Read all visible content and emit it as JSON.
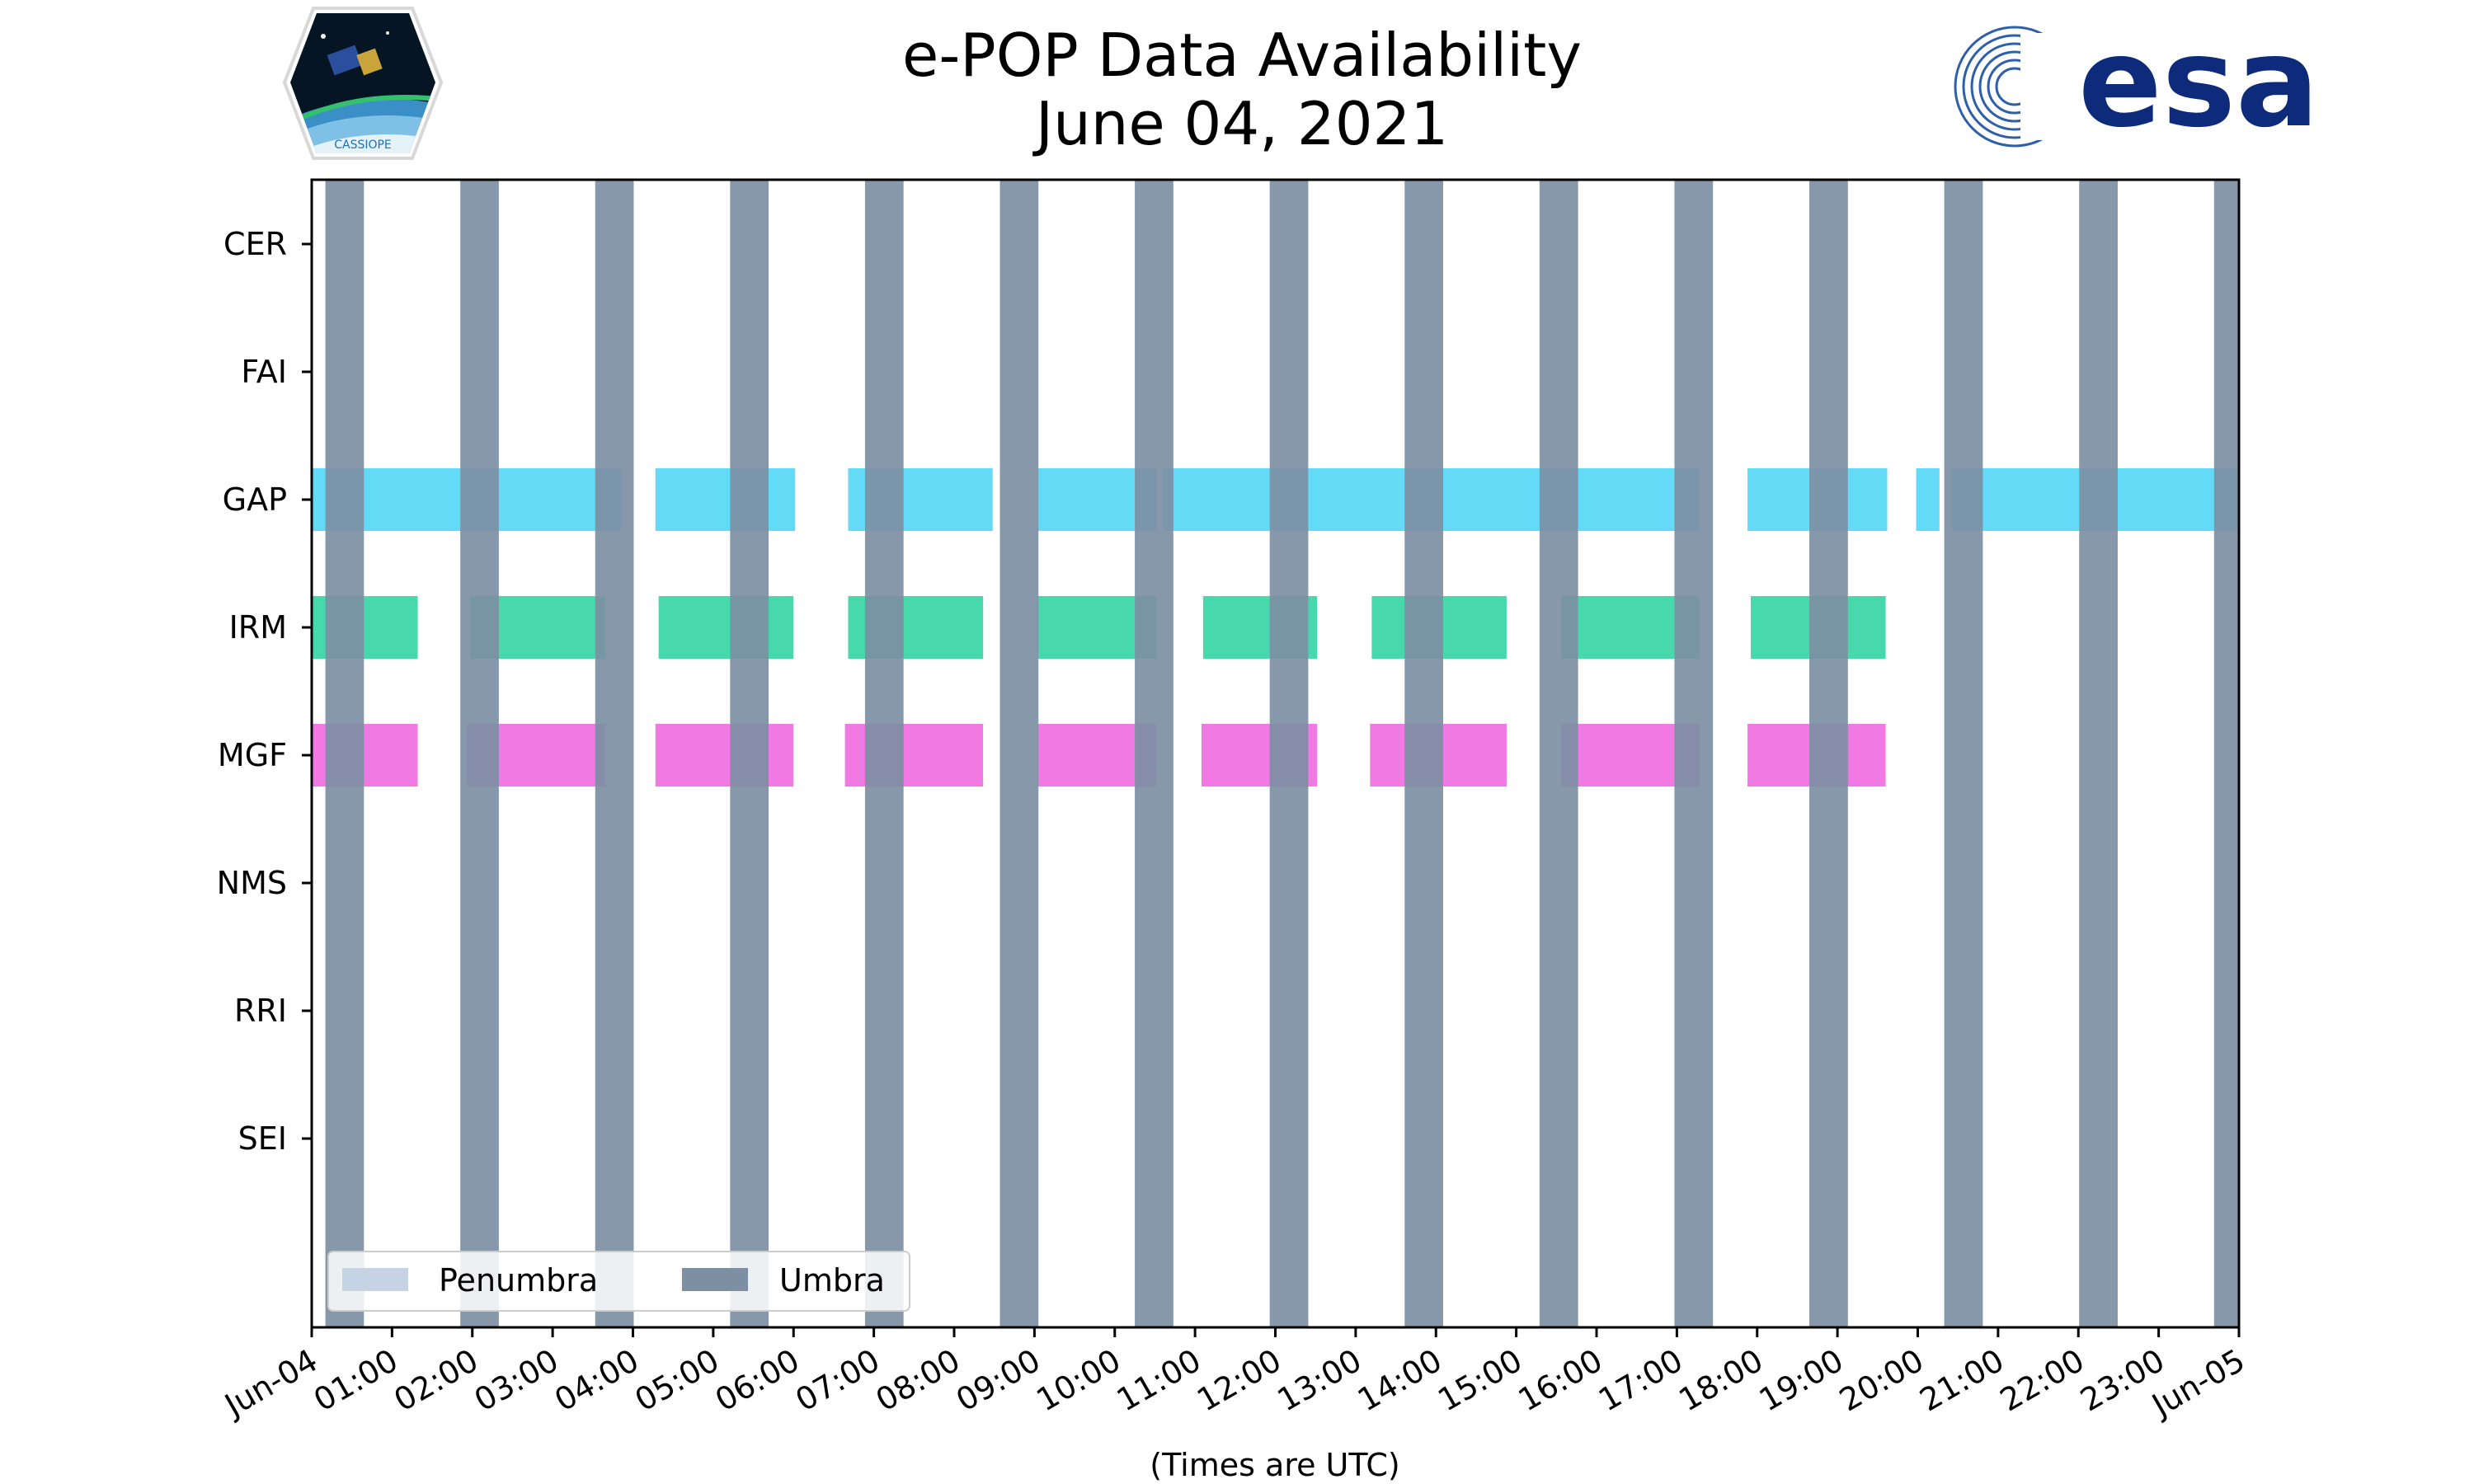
{
  "chart_data": {
    "type": "timeline",
    "title": "e-POP Data Availability",
    "subtitle": "June 04, 2021",
    "xlabel": "(Times are UTC)",
    "xlim": [
      0,
      24
    ],
    "x_tick_labels": [
      "Jun-04",
      "01:00",
      "02:00",
      "03:00",
      "04:00",
      "05:00",
      "06:00",
      "07:00",
      "08:00",
      "09:00",
      "10:00",
      "11:00",
      "12:00",
      "13:00",
      "14:00",
      "15:00",
      "16:00",
      "17:00",
      "18:00",
      "19:00",
      "20:00",
      "21:00",
      "22:00",
      "23:00",
      "Jun-05"
    ],
    "categories": [
      "CER",
      "FAI",
      "GAP",
      "IRM",
      "MGF",
      "NMS",
      "RRI",
      "SEI"
    ],
    "umbra_intervals": [
      [
        0.17,
        0.65
      ],
      [
        1.85,
        2.33
      ],
      [
        3.53,
        4.01
      ],
      [
        5.21,
        5.69
      ],
      [
        6.89,
        7.37
      ],
      [
        8.57,
        9.05
      ],
      [
        10.25,
        10.73
      ],
      [
        11.93,
        12.41
      ],
      [
        13.61,
        14.09
      ],
      [
        15.29,
        15.77
      ],
      [
        16.97,
        17.45
      ],
      [
        18.65,
        19.13
      ],
      [
        20.33,
        20.81
      ],
      [
        22.01,
        22.49
      ],
      [
        23.69,
        24.0
      ]
    ],
    "series": [
      {
        "name": "GAP",
        "color": "#4fd6f5",
        "intervals": [
          [
            0.0,
            3.86
          ],
          [
            4.28,
            6.02
          ],
          [
            6.68,
            8.48
          ],
          [
            9.04,
            10.52
          ],
          [
            10.6,
            17.28
          ],
          [
            17.88,
            19.62
          ],
          [
            19.98,
            20.27
          ],
          [
            20.42,
            24.0
          ]
        ]
      },
      {
        "name": "IRM",
        "color": "#2dd4a1",
        "intervals": [
          [
            0.0,
            1.32
          ],
          [
            1.97,
            3.66
          ],
          [
            4.32,
            6.0
          ],
          [
            6.68,
            8.36
          ],
          [
            9.04,
            10.52
          ],
          [
            11.1,
            12.52
          ],
          [
            13.2,
            14.88
          ],
          [
            15.56,
            17.28
          ],
          [
            17.92,
            19.6
          ]
        ]
      },
      {
        "name": "MGF",
        "color": "#ee66e0",
        "intervals": [
          [
            0.0,
            1.32
          ],
          [
            1.93,
            3.66
          ],
          [
            4.28,
            6.0
          ],
          [
            6.64,
            8.36
          ],
          [
            9.04,
            10.52
          ],
          [
            11.08,
            12.52
          ],
          [
            13.18,
            14.88
          ],
          [
            15.56,
            17.28
          ],
          [
            17.88,
            19.6
          ]
        ]
      }
    ],
    "legend": {
      "position": "lower-left",
      "entries": [
        {
          "label": "Penumbra",
          "color": "#c6d3e3"
        },
        {
          "label": "Umbra",
          "color": "#7d8fa3"
        }
      ]
    },
    "grid": false
  },
  "logos": {
    "left_caption": "CASSIOPE",
    "right_text": "esa"
  }
}
